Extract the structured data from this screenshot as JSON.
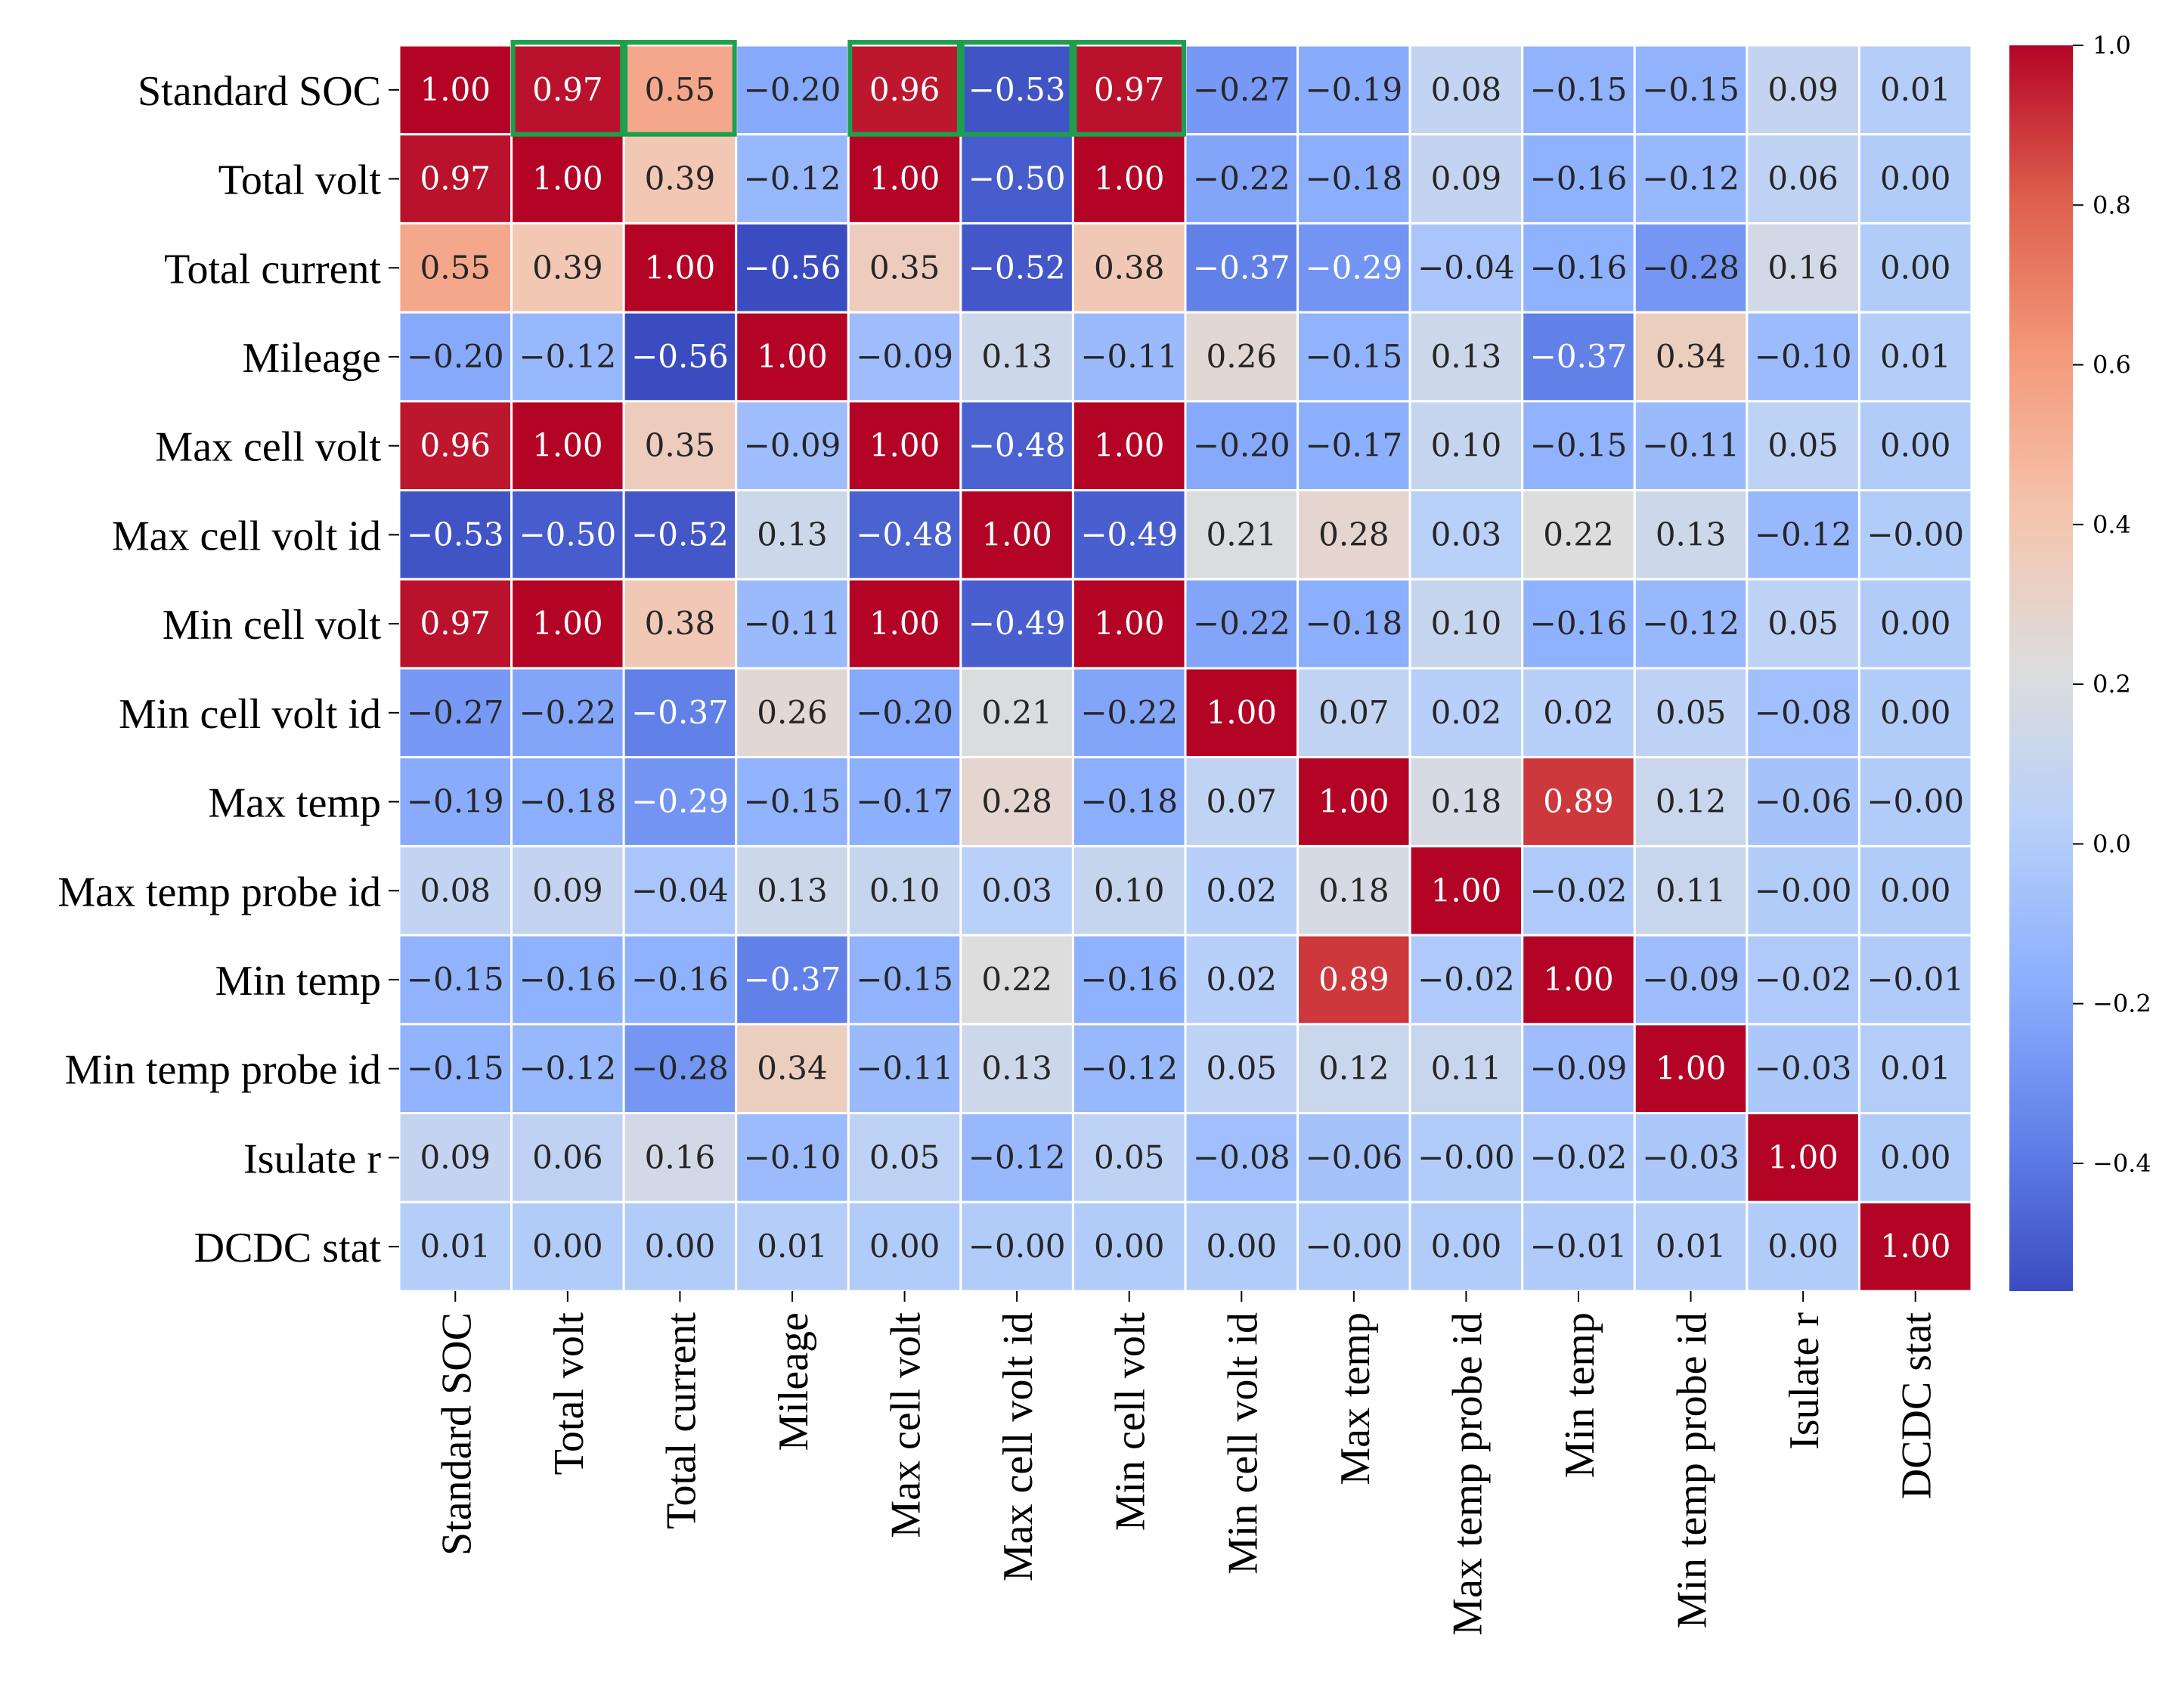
{
  "chart_data": {
    "type": "heatmap",
    "title": "",
    "labels": [
      "Standard SOC",
      "Total volt",
      "Total current",
      "Mileage",
      "Max cell volt",
      "Max cell volt id",
      "Min cell volt",
      "Min cell volt id",
      "Max temp",
      "Max temp probe id",
      "Min temp",
      "Min temp probe id",
      "Isulate r",
      "DCDC stat"
    ],
    "matrix": [
      [
        1.0,
        0.97,
        0.55,
        -0.2,
        0.96,
        -0.53,
        0.97,
        -0.27,
        -0.19,
        0.08,
        -0.15,
        -0.15,
        0.09,
        0.01
      ],
      [
        0.97,
        1.0,
        0.39,
        -0.12,
        1.0,
        -0.5,
        1.0,
        -0.22,
        -0.18,
        0.09,
        -0.16,
        -0.12,
        0.06,
        0.0
      ],
      [
        0.55,
        0.39,
        1.0,
        -0.56,
        0.35,
        -0.52,
        0.38,
        -0.37,
        -0.29,
        -0.04,
        -0.16,
        -0.28,
        0.16,
        0.0
      ],
      [
        -0.2,
        -0.12,
        -0.56,
        1.0,
        -0.09,
        0.13,
        -0.11,
        0.26,
        -0.15,
        0.13,
        -0.37,
        0.34,
        -0.1,
        0.01
      ],
      [
        0.96,
        1.0,
        0.35,
        -0.09,
        1.0,
        -0.48,
        1.0,
        -0.2,
        -0.17,
        0.1,
        -0.15,
        -0.11,
        0.05,
        0.0
      ],
      [
        -0.53,
        -0.5,
        -0.52,
        0.13,
        -0.48,
        1.0,
        -0.49,
        0.21,
        0.28,
        0.03,
        0.22,
        0.13,
        -0.12,
        -0.0
      ],
      [
        0.97,
        1.0,
        0.38,
        -0.11,
        1.0,
        -0.49,
        1.0,
        -0.22,
        -0.18,
        0.1,
        -0.16,
        -0.12,
        0.05,
        0.0
      ],
      [
        -0.27,
        -0.22,
        -0.37,
        0.26,
        -0.2,
        0.21,
        -0.22,
        1.0,
        0.07,
        0.02,
        0.02,
        0.05,
        -0.08,
        0.0
      ],
      [
        -0.19,
        -0.18,
        -0.29,
        -0.15,
        -0.17,
        0.28,
        -0.18,
        0.07,
        1.0,
        0.18,
        0.89,
        0.12,
        -0.06,
        -0.0
      ],
      [
        0.08,
        0.09,
        -0.04,
        0.13,
        0.1,
        0.03,
        0.1,
        0.02,
        0.18,
        1.0,
        -0.02,
        0.11,
        -0.0,
        0.0
      ],
      [
        -0.15,
        -0.16,
        -0.16,
        -0.37,
        -0.15,
        0.22,
        -0.16,
        0.02,
        0.89,
        -0.02,
        1.0,
        -0.09,
        -0.02,
        -0.01
      ],
      [
        -0.15,
        -0.12,
        -0.28,
        0.34,
        -0.11,
        0.13,
        -0.12,
        0.05,
        0.12,
        0.11,
        -0.09,
        1.0,
        -0.03,
        0.01
      ],
      [
        0.09,
        0.06,
        0.16,
        -0.1,
        0.05,
        -0.12,
        0.05,
        -0.08,
        -0.06,
        -0.0,
        -0.02,
        -0.03,
        1.0,
        0.0
      ],
      [
        0.01,
        0.0,
        0.0,
        0.01,
        0.0,
        -0.0,
        0.0,
        0.0,
        -0.0,
        0.0,
        -0.01,
        0.01,
        0.0,
        1.0
      ]
    ],
    "colorscale": "coolwarm",
    "vmin": -0.56,
    "vmax": 1.0,
    "colorbar_ticks": [
      1.0,
      0.8,
      0.6,
      0.4,
      0.2,
      0.0,
      -0.2,
      -0.4
    ],
    "colorbar_tick_labels": [
      "1.0",
      "0.8",
      "0.6",
      "0.4",
      "0.2",
      "0.0",
      "−0.2",
      "−0.4"
    ],
    "highlighted_cells": [
      {
        "row": 0,
        "col": 1
      },
      {
        "row": 0,
        "col": 2
      },
      {
        "row": 0,
        "col": 4
      },
      {
        "row": 0,
        "col": 5
      },
      {
        "row": 0,
        "col": 6
      }
    ],
    "highlight_color": "#1e9f4e",
    "xlabel": "",
    "ylabel": ""
  }
}
